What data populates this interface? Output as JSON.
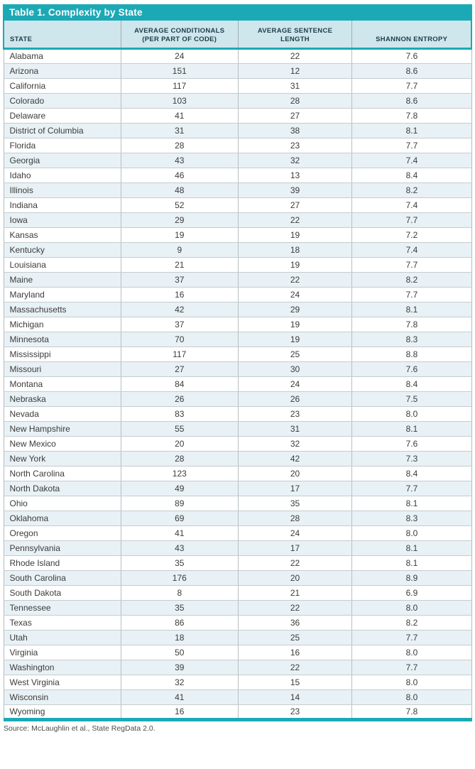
{
  "title": "Table 1. Complexity by State",
  "source": "Source: McLaughlin et al., State RegData 2.0.",
  "accent_colors": {
    "teal": "#1ca9b6",
    "header_bg": "#cfe6ec",
    "alt_row_bg": "#e8f1f5"
  },
  "table": {
    "headers": [
      "STATE",
      "AVERAGE CONDITIONALS (PER PART OF CODE)",
      "AVERAGE SENTENCE LENGTH",
      "SHANNON ENTROPY"
    ],
    "rows": [
      {
        "state": "Alabama",
        "conditionals": "24",
        "sentence_length": "22",
        "entropy": "7.6"
      },
      {
        "state": "Arizona",
        "conditionals": "151",
        "sentence_length": "12",
        "entropy": "8.6"
      },
      {
        "state": "California",
        "conditionals": "117",
        "sentence_length": "31",
        "entropy": "7.7"
      },
      {
        "state": "Colorado",
        "conditionals": "103",
        "sentence_length": "28",
        "entropy": "8.6"
      },
      {
        "state": "Delaware",
        "conditionals": "41",
        "sentence_length": "27",
        "entropy": "7.8"
      },
      {
        "state": "District of Columbia",
        "conditionals": "31",
        "sentence_length": "38",
        "entropy": "8.1"
      },
      {
        "state": "Florida",
        "conditionals": "28",
        "sentence_length": "23",
        "entropy": "7.7"
      },
      {
        "state": "Georgia",
        "conditionals": "43",
        "sentence_length": "32",
        "entropy": "7.4"
      },
      {
        "state": "Idaho",
        "conditionals": "46",
        "sentence_length": "13",
        "entropy": "8.4"
      },
      {
        "state": "Illinois",
        "conditionals": "48",
        "sentence_length": "39",
        "entropy": "8.2"
      },
      {
        "state": "Indiana",
        "conditionals": "52",
        "sentence_length": "27",
        "entropy": "7.4"
      },
      {
        "state": "Iowa",
        "conditionals": "29",
        "sentence_length": "22",
        "entropy": "7.7"
      },
      {
        "state": "Kansas",
        "conditionals": "19",
        "sentence_length": "19",
        "entropy": "7.2"
      },
      {
        "state": "Kentucky",
        "conditionals": "9",
        "sentence_length": "18",
        "entropy": "7.4"
      },
      {
        "state": "Louisiana",
        "conditionals": "21",
        "sentence_length": "19",
        "entropy": "7.7"
      },
      {
        "state": "Maine",
        "conditionals": "37",
        "sentence_length": "22",
        "entropy": "8.2"
      },
      {
        "state": "Maryland",
        "conditionals": "16",
        "sentence_length": "24",
        "entropy": "7.7"
      },
      {
        "state": "Massachusetts",
        "conditionals": "42",
        "sentence_length": "29",
        "entropy": "8.1"
      },
      {
        "state": "Michigan",
        "conditionals": "37",
        "sentence_length": "19",
        "entropy": "7.8"
      },
      {
        "state": "Minnesota",
        "conditionals": "70",
        "sentence_length": "19",
        "entropy": "8.3"
      },
      {
        "state": "Mississippi",
        "conditionals": "117",
        "sentence_length": "25",
        "entropy": "8.8"
      },
      {
        "state": "Missouri",
        "conditionals": "27",
        "sentence_length": "30",
        "entropy": "7.6"
      },
      {
        "state": "Montana",
        "conditionals": "84",
        "sentence_length": "24",
        "entropy": "8.4"
      },
      {
        "state": "Nebraska",
        "conditionals": "26",
        "sentence_length": "26",
        "entropy": "7.5"
      },
      {
        "state": "Nevada",
        "conditionals": "83",
        "sentence_length": "23",
        "entropy": "8.0"
      },
      {
        "state": "New Hampshire",
        "conditionals": "55",
        "sentence_length": "31",
        "entropy": "8.1"
      },
      {
        "state": "New Mexico",
        "conditionals": "20",
        "sentence_length": "32",
        "entropy": "7.6"
      },
      {
        "state": "New York",
        "conditionals": "28",
        "sentence_length": "42",
        "entropy": "7.3"
      },
      {
        "state": "North Carolina",
        "conditionals": "123",
        "sentence_length": "20",
        "entropy": "8.4"
      },
      {
        "state": "North Dakota",
        "conditionals": "49",
        "sentence_length": "17",
        "entropy": "7.7"
      },
      {
        "state": "Ohio",
        "conditionals": "89",
        "sentence_length": "35",
        "entropy": "8.1"
      },
      {
        "state": "Oklahoma",
        "conditionals": "69",
        "sentence_length": "28",
        "entropy": "8.3"
      },
      {
        "state": "Oregon",
        "conditionals": "41",
        "sentence_length": "24",
        "entropy": "8.0"
      },
      {
        "state": "Pennsylvania",
        "conditionals": "43",
        "sentence_length": "17",
        "entropy": "8.1"
      },
      {
        "state": "Rhode Island",
        "conditionals": "35",
        "sentence_length": "22",
        "entropy": "8.1"
      },
      {
        "state": "South Carolina",
        "conditionals": "176",
        "sentence_length": "20",
        "entropy": "8.9"
      },
      {
        "state": "South Dakota",
        "conditionals": "8",
        "sentence_length": "21",
        "entropy": "6.9"
      },
      {
        "state": "Tennessee",
        "conditionals": "35",
        "sentence_length": "22",
        "entropy": "8.0"
      },
      {
        "state": "Texas",
        "conditionals": "86",
        "sentence_length": "36",
        "entropy": "8.2"
      },
      {
        "state": "Utah",
        "conditionals": "18",
        "sentence_length": "25",
        "entropy": "7.7"
      },
      {
        "state": "Virginia",
        "conditionals": "50",
        "sentence_length": "16",
        "entropy": "8.0"
      },
      {
        "state": "Washington",
        "conditionals": "39",
        "sentence_length": "22",
        "entropy": "7.7"
      },
      {
        "state": "West Virginia",
        "conditionals": "32",
        "sentence_length": "15",
        "entropy": "8.0"
      },
      {
        "state": "Wisconsin",
        "conditionals": "41",
        "sentence_length": "14",
        "entropy": "8.0"
      },
      {
        "state": "Wyoming",
        "conditionals": "16",
        "sentence_length": "23",
        "entropy": "7.8"
      }
    ]
  }
}
